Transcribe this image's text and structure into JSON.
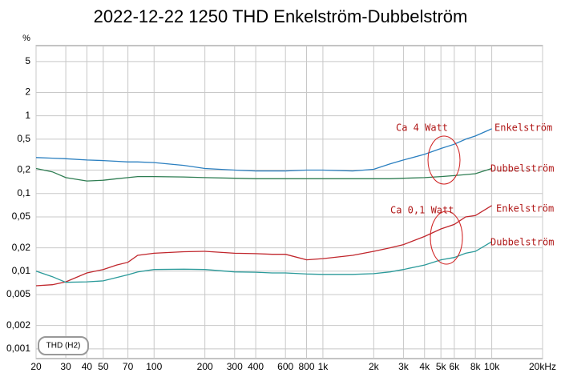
{
  "chart_data": {
    "type": "line",
    "title": "2022-12-22 1250 THD Enkelström-Dubbelström",
    "y_unit": "%",
    "box_label": "THD (H2)",
    "log_x": true,
    "log_y": true,
    "grid": true,
    "annotations": [
      "Ca 4 Watt",
      "Ca 0,1 Watt"
    ],
    "xlim": [
      20,
      20000
    ],
    "ylim": [
      0.00075,
      8
    ],
    "xticks": [
      20,
      30,
      40,
      50,
      70,
      100,
      200,
      300,
      400,
      600,
      800,
      {
        "value": 1000,
        "label": "1k"
      },
      {
        "value": 2000,
        "label": "2k"
      },
      {
        "value": 3000,
        "label": "3k"
      },
      {
        "value": 4000,
        "label": "4k"
      },
      {
        "value": 5000,
        "label": "5k"
      },
      {
        "value": 6000,
        "label": "6k"
      },
      {
        "value": 8000,
        "label": "8k"
      },
      {
        "value": 10000,
        "label": "10k"
      },
      {
        "value": 20000,
        "label": "20kHz"
      }
    ],
    "yticks": [
      {
        "value": 0.001,
        "label": "0,001"
      },
      {
        "value": 0.002,
        "label": "0,002"
      },
      {
        "value": 0.005,
        "label": "0,005"
      },
      {
        "value": 0.01,
        "label": "0,01"
      },
      {
        "value": 0.02,
        "label": "0,02"
      },
      {
        "value": 0.05,
        "label": "0,05"
      },
      {
        "value": 0.1,
        "label": "0,1"
      },
      {
        "value": 0.2,
        "label": "0,2"
      },
      {
        "value": 0.5,
        "label": "0,5"
      },
      1,
      2,
      5
    ],
    "x": [
      20,
      25,
      30,
      40,
      50,
      60,
      70,
      80,
      100,
      150,
      200,
      300,
      400,
      500,
      600,
      800,
      1000,
      1500,
      2000,
      2500,
      3000,
      4000,
      5000,
      6000,
      7000,
      8000,
      10000
    ],
    "series": [
      {
        "name": "Enkelström",
        "color": "#2a7fc0",
        "values": [
          0.29,
          0.285,
          0.28,
          0.27,
          0.265,
          0.26,
          0.255,
          0.255,
          0.25,
          0.23,
          0.21,
          0.2,
          0.195,
          0.195,
          0.195,
          0.2,
          0.2,
          0.195,
          0.205,
          0.24,
          0.27,
          0.32,
          0.38,
          0.43,
          0.5,
          0.55,
          0.68
        ]
      },
      {
        "name": "Dubbelström",
        "color": "#2e7d52",
        "values": [
          0.21,
          0.19,
          0.16,
          0.145,
          0.148,
          0.155,
          0.16,
          0.165,
          0.165,
          0.163,
          0.16,
          0.157,
          0.155,
          0.155,
          0.155,
          0.155,
          0.155,
          0.155,
          0.155,
          0.155,
          0.157,
          0.16,
          0.165,
          0.17,
          0.175,
          0.18,
          0.21
        ]
      },
      {
        "name": "Enkelström",
        "color": "#c0262c",
        "values": [
          0.0065,
          0.0067,
          0.0073,
          0.0095,
          0.0105,
          0.012,
          0.013,
          0.016,
          0.017,
          0.0178,
          0.018,
          0.017,
          0.0168,
          0.0165,
          0.0165,
          0.014,
          0.0145,
          0.016,
          0.018,
          0.02,
          0.022,
          0.028,
          0.035,
          0.04,
          0.05,
          0.052,
          0.07
        ]
      },
      {
        "name": "Dubbelström",
        "color": "#2a9a9a",
        "values": [
          0.01,
          0.0085,
          0.0072,
          0.0073,
          0.0075,
          0.0083,
          0.009,
          0.0098,
          0.0105,
          0.0106,
          0.0105,
          0.0098,
          0.0097,
          0.0095,
          0.0095,
          0.0092,
          0.0091,
          0.0091,
          0.0093,
          0.0098,
          0.0105,
          0.012,
          0.014,
          0.015,
          0.017,
          0.018,
          0.024
        ]
      }
    ]
  }
}
